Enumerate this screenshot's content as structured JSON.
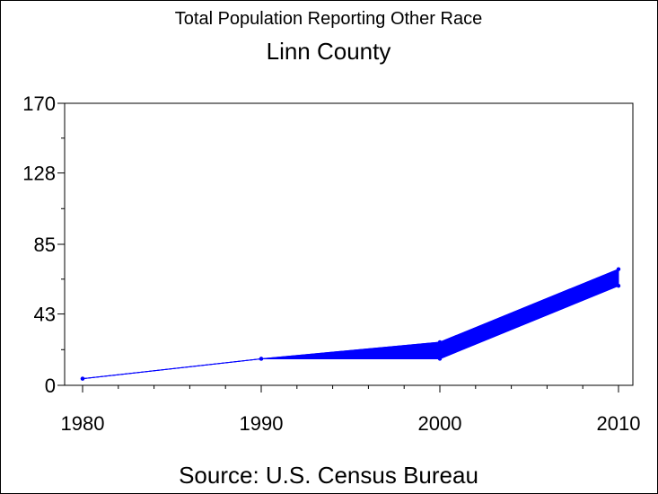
{
  "chart_data": {
    "type": "line",
    "title": "Total Population Reporting Other Race",
    "subtitle": "Linn County",
    "source": "Source: U.S. Census Bureau",
    "xlabel": "",
    "ylabel": "",
    "x": [
      1980,
      1990,
      2000,
      2010
    ],
    "x_tick_labels": [
      "1980",
      "1990",
      "2000",
      "2010"
    ],
    "xlim": [
      1980,
      2010
    ],
    "ylim": [
      0,
      170
    ],
    "y_ticks": [
      0,
      43,
      85,
      128,
      170
    ],
    "y_tick_labels": [
      "0",
      "43",
      "85",
      "128",
      "170"
    ],
    "series_color": "#0000ff",
    "series": [
      {
        "values": [
          4,
          16,
          26,
          70
        ]
      },
      {
        "values": [
          4,
          16,
          16,
          60
        ]
      }
    ],
    "grid": false,
    "legend": "none"
  }
}
